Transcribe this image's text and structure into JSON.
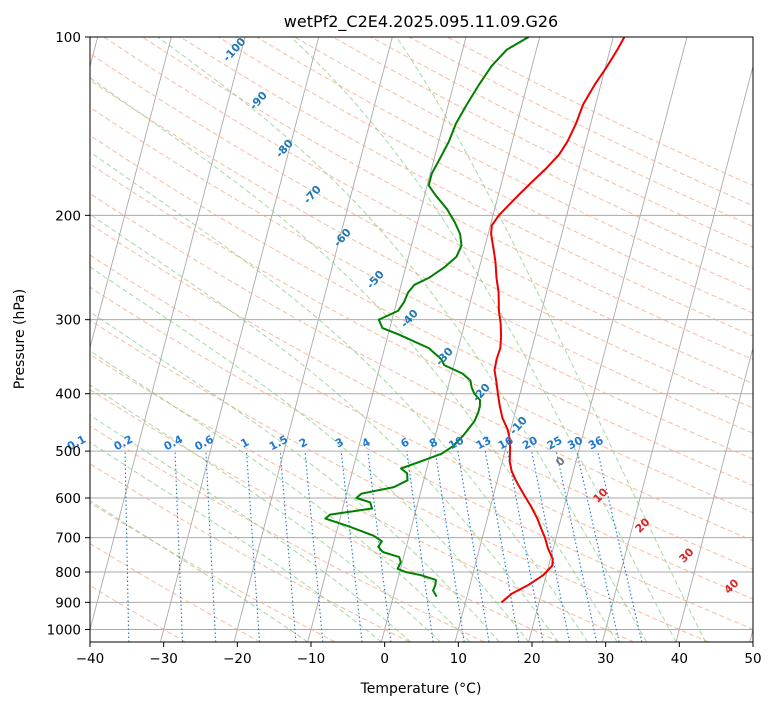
{
  "chart_data": {
    "type": "line",
    "title": "wetPf2_C2E4.2025.095.11.09.G26",
    "xlabel": "Temperature (°C)",
    "ylabel": "Pressure (hPa)",
    "xlim": [
      -40,
      50
    ],
    "ylim": [
      1050,
      100
    ],
    "y_scale": "log",
    "grid": true,
    "x_ticks": [
      "−40",
      "−30",
      "−20",
      "−10",
      "0",
      "10",
      "20",
      "30",
      "40",
      "50"
    ],
    "y_ticks": [
      "100",
      "200",
      "300",
      "400",
      "500",
      "600",
      "700",
      "800",
      "900",
      "1000"
    ],
    "series": [
      {
        "color": "#ee0000",
        "points": [
          [
            14.9,
            900
          ],
          [
            16,
            870
          ],
          [
            18,
            840
          ],
          [
            19.6,
            810
          ],
          [
            20.5,
            780
          ],
          [
            20.3,
            760
          ],
          [
            19.3,
            730
          ],
          [
            18.5,
            700
          ],
          [
            17.8,
            680
          ],
          [
            16.8,
            650
          ],
          [
            15.5,
            620
          ],
          [
            14.5,
            600
          ],
          [
            13.5,
            580
          ],
          [
            12.5,
            560
          ],
          [
            11.6,
            540
          ],
          [
            11.0,
            520
          ],
          [
            10.7,
            500
          ],
          [
            10.3,
            480
          ],
          [
            9.6,
            460
          ],
          [
            8.5,
            440
          ],
          [
            7.7,
            420
          ],
          [
            7.0,
            400
          ],
          [
            6.3,
            380
          ],
          [
            5.7,
            365
          ],
          [
            5.6,
            350
          ],
          [
            5.7,
            335
          ],
          [
            5.4,
            320
          ],
          [
            4.9,
            305
          ],
          [
            4.2,
            290
          ],
          [
            3.5,
            270
          ],
          [
            2.7,
            255
          ],
          [
            2.0,
            240
          ],
          [
            1.4,
            230
          ],
          [
            0.4,
            215
          ],
          [
            0.2,
            208
          ],
          [
            0.8,
            200
          ],
          [
            1.8,
            192
          ],
          [
            3.0,
            183
          ],
          [
            4.2,
            175
          ],
          [
            5.5,
            167
          ],
          [
            6.8,
            158
          ],
          [
            7.5,
            150
          ],
          [
            8.0,
            140
          ],
          [
            8.3,
            130
          ],
          [
            9.2,
            120
          ],
          [
            10.2,
            112
          ],
          [
            11.0,
            105
          ],
          [
            11.5,
            100
          ]
        ]
      },
      {
        "color": "#008000",
        "points": [
          [
            5.9,
            880
          ],
          [
            5.2,
            860
          ],
          [
            5.3,
            840
          ],
          [
            5.2,
            825
          ],
          [
            3.0,
            810
          ],
          [
            0.8,
            800
          ],
          [
            -0.4,
            790
          ],
          [
            -0.2,
            770
          ],
          [
            -0.6,
            755
          ],
          [
            -3.0,
            740
          ],
          [
            -3.8,
            725
          ],
          [
            -3.5,
            710
          ],
          [
            -4.8,
            695
          ],
          [
            -8.5,
            670
          ],
          [
            -12.0,
            650
          ],
          [
            -11.5,
            640
          ],
          [
            -6.0,
            625
          ],
          [
            -6.5,
            610
          ],
          [
            -8.5,
            600
          ],
          [
            -8.0,
            590
          ],
          [
            -3.8,
            575
          ],
          [
            -2.2,
            560
          ],
          [
            -2.5,
            545
          ],
          [
            -3.5,
            535
          ],
          [
            -1.0,
            520
          ],
          [
            1.5,
            505
          ],
          [
            2.8,
            490
          ],
          [
            3.8,
            470
          ],
          [
            4.8,
            445
          ],
          [
            5.0,
            430
          ],
          [
            5.0,
            420
          ],
          [
            4.8,
            410
          ],
          [
            3.8,
            400
          ],
          [
            3.2,
            390
          ],
          [
            2.8,
            380
          ],
          [
            1.5,
            370
          ],
          [
            -1.3,
            358
          ],
          [
            -1.9,
            350
          ],
          [
            -4.0,
            335
          ],
          [
            -8.5,
            318
          ],
          [
            -11.0,
            310
          ],
          [
            -11.8,
            300
          ],
          [
            -9.5,
            290
          ],
          [
            -9.0,
            280
          ],
          [
            -8.8,
            270
          ],
          [
            -8.2,
            262
          ],
          [
            -6.5,
            255
          ],
          [
            -4.8,
            245
          ],
          [
            -3.5,
            235
          ],
          [
            -3.2,
            225
          ],
          [
            -3.8,
            215
          ],
          [
            -5.0,
            205
          ],
          [
            -6.5,
            195
          ],
          [
            -8.5,
            185
          ],
          [
            -9.8,
            178
          ],
          [
            -9.8,
            170
          ],
          [
            -9.2,
            160
          ],
          [
            -8.6,
            150
          ],
          [
            -8.3,
            140
          ],
          [
            -7.5,
            130
          ],
          [
            -6.5,
            120
          ],
          [
            -5.5,
            112
          ],
          [
            -4.0,
            105
          ],
          [
            -1.5,
            100
          ]
        ]
      }
    ],
    "dry_adiabat_labels": [
      "-100",
      "-90",
      "-80",
      "-70",
      "-60",
      "-50",
      "-40",
      "-30",
      "-20",
      "-10"
    ],
    "mixing_ratio_labels": [
      "0.1",
      "0.2",
      "0.4",
      "0.6",
      "1",
      "1.5",
      "2",
      "3",
      "4",
      "6",
      "8",
      "10",
      "13",
      "16",
      "20",
      "25",
      "30",
      "36"
    ],
    "moist_adiabat_labels": [
      "0",
      "10",
      "20",
      "30",
      "40"
    ],
    "colors": {
      "temperature": "#ee0000",
      "dewpoint": "#008000",
      "isotherm": "#aaaaaa",
      "dry_adiabat": "#f4a582",
      "moist_adiabat": "#7fc97f",
      "mixing_ratio": "#1f78d1",
      "annotation_blue": "#1f77b4",
      "annotation_red": "#d62728",
      "annotation_gray": "#777777"
    }
  }
}
